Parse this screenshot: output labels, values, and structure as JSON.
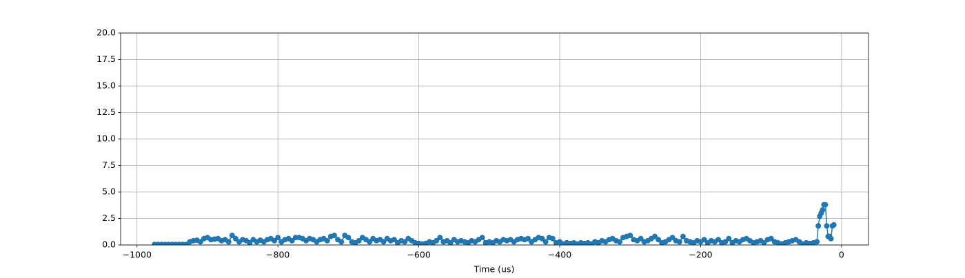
{
  "chart_data": {
    "type": "line",
    "xlabel": "Time (us)",
    "x": [
      -975,
      -970,
      -965,
      -960,
      -955,
      -950,
      -945,
      -940,
      -935,
      -930,
      -925,
      -920,
      -915,
      -910,
      -905,
      -900,
      -895,
      -890,
      -885,
      -880,
      -875,
      -870,
      -865,
      -860,
      -855,
      -850,
      -845,
      -840,
      -835,
      -830,
      -825,
      -820,
      -815,
      -810,
      -805,
      -800,
      -795,
      -790,
      -785,
      -780,
      -775,
      -770,
      -765,
      -760,
      -755,
      -750,
      -745,
      -740,
      -735,
      -730,
      -725,
      -720,
      -715,
      -710,
      -705,
      -700,
      -695,
      -690,
      -685,
      -680,
      -675,
      -670,
      -665,
      -660,
      -655,
      -650,
      -645,
      -640,
      -635,
      -630,
      -625,
      -620,
      -615,
      -610,
      -605,
      -600,
      -595,
      -590,
      -585,
      -580,
      -575,
      -570,
      -565,
      -560,
      -555,
      -550,
      -545,
      -540,
      -535,
      -530,
      -525,
      -520,
      -515,
      -510,
      -505,
      -500,
      -495,
      -490,
      -485,
      -480,
      -475,
      -470,
      -465,
      -460,
      -455,
      -450,
      -445,
      -440,
      -435,
      -430,
      -425,
      -420,
      -415,
      -410,
      -405,
      -400,
      -395,
      -390,
      -385,
      -380,
      -375,
      -370,
      -365,
      -360,
      -355,
      -350,
      -345,
      -340,
      -335,
      -330,
      -325,
      -320,
      -315,
      -310,
      -305,
      -300,
      -295,
      -290,
      -285,
      -280,
      -275,
      -270,
      -265,
      -260,
      -255,
      -250,
      -245,
      -240,
      -235,
      -230,
      -225,
      -220,
      -215,
      -210,
      -205,
      -200,
      -195,
      -190,
      -185,
      -180,
      -175,
      -170,
      -165,
      -160,
      -155,
      -150,
      -145,
      -140,
      -135,
      -130,
      -125,
      -120,
      -115,
      -110,
      -105,
      -100,
      -95,
      -90,
      -85,
      -80,
      -75,
      -70,
      -65,
      -60,
      -55,
      -50,
      -45,
      -40,
      -35,
      -33,
      -31,
      -29,
      -27,
      -25,
      -23,
      -21,
      -19,
      -17,
      -15,
      -13,
      -11
    ],
    "series": [
      {
        "color": "#1f77b4",
        "values": [
          0.05,
          0.05,
          0.05,
          0.05,
          0.05,
          0.05,
          0.05,
          0.05,
          0.05,
          0.05,
          0.3,
          0.4,
          0.45,
          0.3,
          0.6,
          0.7,
          0.5,
          0.55,
          0.6,
          0.4,
          0.5,
          0.3,
          0.9,
          0.6,
          0.3,
          0.5,
          0.4,
          0.2,
          0.5,
          0.3,
          0.45,
          0.3,
          0.5,
          0.6,
          0.4,
          0.7,
          0.3,
          0.5,
          0.6,
          0.4,
          0.7,
          0.7,
          0.6,
          0.4,
          0.6,
          0.5,
          0.3,
          0.5,
          0.6,
          0.4,
          0.8,
          0.9,
          0.5,
          0.3,
          0.9,
          0.7,
          0.3,
          0.2,
          0.4,
          0.7,
          0.5,
          0.3,
          0.6,
          0.4,
          0.5,
          0.3,
          0.6,
          0.4,
          0.5,
          0.2,
          0.4,
          0.3,
          0.6,
          0.4,
          0.2,
          0.15,
          0.1,
          0.15,
          0.3,
          0.2,
          0.4,
          0.7,
          0.3,
          0.4,
          0.2,
          0.5,
          0.3,
          0.4,
          0.3,
          0.2,
          0.4,
          0.3,
          0.5,
          0.7,
          0.2,
          0.3,
          0.2,
          0.4,
          0.3,
          0.5,
          0.4,
          0.5,
          0.3,
          0.5,
          0.6,
          0.5,
          0.6,
          0.3,
          0.5,
          0.7,
          0.6,
          0.3,
          0.7,
          0.6,
          0.2,
          0.3,
          0.1,
          0.2,
          0.15,
          0.2,
          0.1,
          0.2,
          0.15,
          0.2,
          0.1,
          0.3,
          0.2,
          0.4,
          0.3,
          0.5,
          0.6,
          0.4,
          0.3,
          0.7,
          0.8,
          0.9,
          0.5,
          0.4,
          0.6,
          0.3,
          0.4,
          0.6,
          0.8,
          0.5,
          0.2,
          0.3,
          0.5,
          0.7,
          0.4,
          0.3,
          0.8,
          0.4,
          0.3,
          0.2,
          0.4,
          0.3,
          0.5,
          0.2,
          0.4,
          0.3,
          0.5,
          0.2,
          0.3,
          0.6,
          0.2,
          0.4,
          0.3,
          0.5,
          0.6,
          0.4,
          0.2,
          0.3,
          0.4,
          0.2,
          0.5,
          0.6,
          0.3,
          0.2,
          0.1,
          0.2,
          0.3,
          0.4,
          0.5,
          0.3,
          0.1,
          0.2,
          0.15,
          0.2,
          0.3,
          1.8,
          2.7,
          3.0,
          3.3,
          3.8,
          3.8,
          1.8,
          0.8,
          0.8,
          0.6,
          1.8,
          1.9
        ]
      }
    ],
    "xlim": [
      -1023.25,
      38.25
    ],
    "xticks": [
      {
        "value": -1000,
        "label": "−1000"
      },
      {
        "value": -800,
        "label": "−800"
      },
      {
        "value": -600,
        "label": "−600"
      },
      {
        "value": -400,
        "label": "−400"
      },
      {
        "value": -200,
        "label": "−200"
      },
      0
    ],
    "ylim": [
      0,
      20
    ],
    "yticks": [
      {
        "value": 0,
        "label": "0.0"
      },
      {
        "value": 2.5,
        "label": "2.5"
      },
      {
        "value": 5,
        "label": "5.0"
      },
      {
        "value": 7.5,
        "label": "7.5"
      },
      {
        "value": 10,
        "label": "10.0"
      },
      {
        "value": 12.5,
        "label": "12.5"
      },
      {
        "value": 15,
        "label": "15.0"
      },
      {
        "value": 17.5,
        "label": "17.5"
      },
      {
        "value": 20,
        "label": "20.0"
      }
    ],
    "grid": true
  }
}
